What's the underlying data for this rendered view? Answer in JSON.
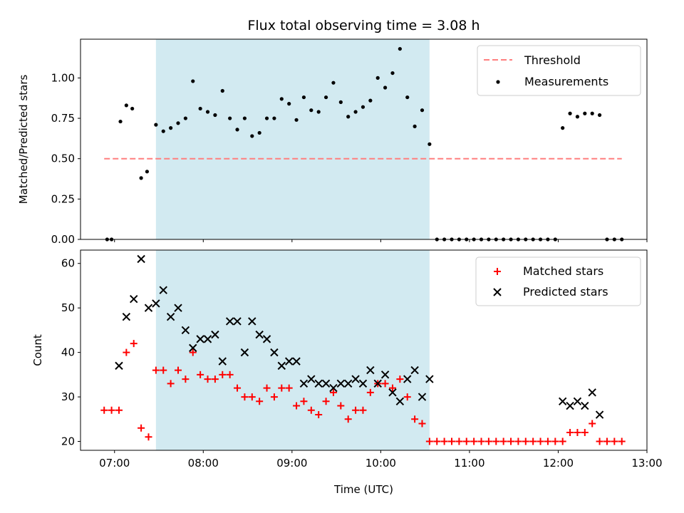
{
  "chart_data": [
    {
      "type": "scatter",
      "title": "Flux total observing time = 3.08 h",
      "ylabel": "Matched/Predicted stars",
      "xlim": [
        "06:37",
        "13:00"
      ],
      "ylim": [
        0,
        1.24
      ],
      "yticks": [
        "0.00",
        "0.25",
        "0.50",
        "0.75",
        "1.00"
      ],
      "grid": false,
      "legend_placement": "top-right",
      "shaded_interval": {
        "start": "07:28",
        "end": "10:33",
        "color": "#add8e6"
      },
      "threshold": {
        "name": "Threshold",
        "value": 0.5,
        "x_start": "06:53",
        "x_end": "12:43",
        "color": "#ff7f7f"
      },
      "series": [
        {
          "name": "Measurements",
          "color": "#000000",
          "points": [
            [
              "06:55",
              0.0
            ],
            [
              "06:58",
              0.0
            ],
            [
              "07:04",
              0.73
            ],
            [
              "07:08",
              0.83
            ],
            [
              "07:12",
              0.81
            ],
            [
              "07:18",
              0.38
            ],
            [
              "07:22",
              0.42
            ],
            [
              "07:28",
              0.71
            ],
            [
              "07:33",
              0.67
            ],
            [
              "07:38",
              0.69
            ],
            [
              "07:43",
              0.72
            ],
            [
              "07:48",
              0.75
            ],
            [
              "07:53",
              0.98
            ],
            [
              "07:58",
              0.81
            ],
            [
              "08:03",
              0.79
            ],
            [
              "08:08",
              0.77
            ],
            [
              "08:13",
              0.92
            ],
            [
              "08:18",
              0.75
            ],
            [
              "08:23",
              0.68
            ],
            [
              "08:28",
              0.75
            ],
            [
              "08:33",
              0.64
            ],
            [
              "08:38",
              0.66
            ],
            [
              "08:43",
              0.75
            ],
            [
              "08:48",
              0.75
            ],
            [
              "08:53",
              0.87
            ],
            [
              "08:58",
              0.84
            ],
            [
              "09:03",
              0.74
            ],
            [
              "09:08",
              0.88
            ],
            [
              "09:13",
              0.8
            ],
            [
              "09:18",
              0.79
            ],
            [
              "09:23",
              0.88
            ],
            [
              "09:28",
              0.97
            ],
            [
              "09:33",
              0.85
            ],
            [
              "09:38",
              0.76
            ],
            [
              "09:43",
              0.79
            ],
            [
              "09:48",
              0.82
            ],
            [
              "09:53",
              0.86
            ],
            [
              "09:58",
              1.0
            ],
            [
              "10:03",
              0.94
            ],
            [
              "10:08",
              1.03
            ],
            [
              "10:13",
              1.18
            ],
            [
              "10:18",
              0.88
            ],
            [
              "10:23",
              0.7
            ],
            [
              "10:28",
              0.8
            ],
            [
              "10:33",
              0.59
            ],
            [
              "10:38",
              0.0
            ],
            [
              "10:43",
              0.0
            ],
            [
              "10:48",
              0.0
            ],
            [
              "10:53",
              0.0
            ],
            [
              "10:58",
              0.0
            ],
            [
              "11:03",
              0.0
            ],
            [
              "11:08",
              0.0
            ],
            [
              "11:13",
              0.0
            ],
            [
              "11:18",
              0.0
            ],
            [
              "11:23",
              0.0
            ],
            [
              "11:28",
              0.0
            ],
            [
              "11:33",
              0.0
            ],
            [
              "11:38",
              0.0
            ],
            [
              "11:43",
              0.0
            ],
            [
              "11:48",
              0.0
            ],
            [
              "11:53",
              0.0
            ],
            [
              "11:58",
              0.0
            ],
            [
              "12:03",
              0.69
            ],
            [
              "12:08",
              0.78
            ],
            [
              "12:13",
              0.76
            ],
            [
              "12:18",
              0.78
            ],
            [
              "12:23",
              0.78
            ],
            [
              "12:28",
              0.77
            ],
            [
              "12:33",
              0.0
            ],
            [
              "12:38",
              0.0
            ],
            [
              "12:43",
              0.0
            ]
          ]
        }
      ]
    },
    {
      "type": "scatter",
      "xlabel": "Time (UTC)",
      "ylabel": "Count",
      "xlim": [
        "06:37",
        "13:00"
      ],
      "ylim": [
        18,
        63
      ],
      "yticks": [
        "20",
        "30",
        "40",
        "50",
        "60"
      ],
      "xticks": [
        "07:00",
        "08:00",
        "09:00",
        "10:00",
        "11:00",
        "12:00",
        "13:00"
      ],
      "grid": false,
      "legend_placement": "top-right",
      "shaded_interval": {
        "start": "07:28",
        "end": "10:33",
        "color": "#add8e6"
      },
      "series": [
        {
          "name": "Matched stars",
          "marker": "plus",
          "color": "#ff0000",
          "points": [
            [
              "06:53",
              27
            ],
            [
              "06:58",
              27
            ],
            [
              "07:03",
              27
            ],
            [
              "07:08",
              40
            ],
            [
              "07:13",
              42
            ],
            [
              "07:18",
              23
            ],
            [
              "07:23",
              21
            ],
            [
              "07:28",
              36
            ],
            [
              "07:33",
              36
            ],
            [
              "07:38",
              33
            ],
            [
              "07:43",
              36
            ],
            [
              "07:48",
              34
            ],
            [
              "07:53",
              40
            ],
            [
              "07:58",
              35
            ],
            [
              "08:03",
              34
            ],
            [
              "08:08",
              34
            ],
            [
              "08:13",
              35
            ],
            [
              "08:18",
              35
            ],
            [
              "08:23",
              32
            ],
            [
              "08:28",
              30
            ],
            [
              "08:33",
              30
            ],
            [
              "08:38",
              29
            ],
            [
              "08:43",
              32
            ],
            [
              "08:48",
              30
            ],
            [
              "08:53",
              32
            ],
            [
              "08:58",
              32
            ],
            [
              "09:03",
              28
            ],
            [
              "09:08",
              29
            ],
            [
              "09:13",
              27
            ],
            [
              "09:18",
              26
            ],
            [
              "09:23",
              29
            ],
            [
              "09:28",
              31
            ],
            [
              "09:33",
              28
            ],
            [
              "09:38",
              25
            ],
            [
              "09:43",
              27
            ],
            [
              "09:48",
              27
            ],
            [
              "09:53",
              31
            ],
            [
              "09:58",
              33
            ],
            [
              "10:03",
              33
            ],
            [
              "10:08",
              32
            ],
            [
              "10:13",
              34
            ],
            [
              "10:18",
              30
            ],
            [
              "10:23",
              25
            ],
            [
              "10:28",
              24
            ],
            [
              "10:33",
              20
            ],
            [
              "10:38",
              20
            ],
            [
              "10:43",
              20
            ],
            [
              "10:48",
              20
            ],
            [
              "10:53",
              20
            ],
            [
              "10:58",
              20
            ],
            [
              "11:03",
              20
            ],
            [
              "11:08",
              20
            ],
            [
              "11:13",
              20
            ],
            [
              "11:18",
              20
            ],
            [
              "11:23",
              20
            ],
            [
              "11:28",
              20
            ],
            [
              "11:33",
              20
            ],
            [
              "11:38",
              20
            ],
            [
              "11:43",
              20
            ],
            [
              "11:48",
              20
            ],
            [
              "11:53",
              20
            ],
            [
              "11:58",
              20
            ],
            [
              "12:03",
              20
            ],
            [
              "12:08",
              22
            ],
            [
              "12:13",
              22
            ],
            [
              "12:18",
              22
            ],
            [
              "12:23",
              24
            ],
            [
              "12:28",
              20
            ],
            [
              "12:33",
              20
            ],
            [
              "12:38",
              20
            ],
            [
              "12:43",
              20
            ]
          ]
        },
        {
          "name": "Predicted stars",
          "marker": "x",
          "color": "#000000",
          "points": [
            [
              "07:03",
              37
            ],
            [
              "07:08",
              48
            ],
            [
              "07:13",
              52
            ],
            [
              "07:18",
              61
            ],
            [
              "07:23",
              50
            ],
            [
              "07:28",
              51
            ],
            [
              "07:33",
              54
            ],
            [
              "07:38",
              48
            ],
            [
              "07:43",
              50
            ],
            [
              "07:48",
              45
            ],
            [
              "07:53",
              41
            ],
            [
              "07:58",
              43
            ],
            [
              "08:03",
              43
            ],
            [
              "08:08",
              44
            ],
            [
              "08:13",
              38
            ],
            [
              "08:18",
              47
            ],
            [
              "08:23",
              47
            ],
            [
              "08:28",
              40
            ],
            [
              "08:33",
              47
            ],
            [
              "08:38",
              44
            ],
            [
              "08:43",
              43
            ],
            [
              "08:48",
              40
            ],
            [
              "08:53",
              37
            ],
            [
              "08:58",
              38
            ],
            [
              "09:03",
              38
            ],
            [
              "09:08",
              33
            ],
            [
              "09:13",
              34
            ],
            [
              "09:18",
              33
            ],
            [
              "09:23",
              33
            ],
            [
              "09:28",
              32
            ],
            [
              "09:33",
              33
            ],
            [
              "09:38",
              33
            ],
            [
              "09:43",
              34
            ],
            [
              "09:48",
              33
            ],
            [
              "09:53",
              36
            ],
            [
              "09:58",
              33
            ],
            [
              "10:03",
              35
            ],
            [
              "10:08",
              31
            ],
            [
              "10:13",
              29
            ],
            [
              "10:18",
              34
            ],
            [
              "10:23",
              36
            ],
            [
              "10:28",
              30
            ],
            [
              "10:33",
              34
            ],
            [
              "12:03",
              29
            ],
            [
              "12:08",
              28
            ],
            [
              "12:13",
              29
            ],
            [
              "12:18",
              28
            ],
            [
              "12:23",
              31
            ],
            [
              "12:28",
              26
            ]
          ]
        }
      ]
    }
  ]
}
